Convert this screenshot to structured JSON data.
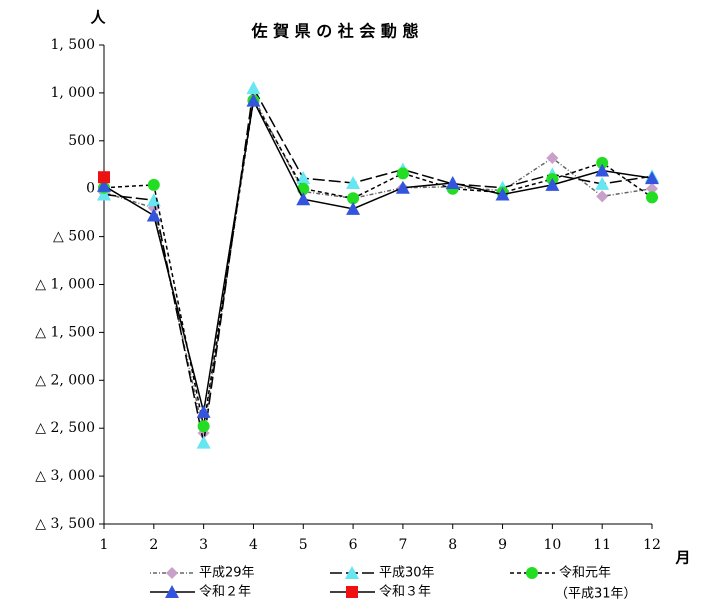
{
  "chart_data": {
    "type": "line",
    "title": "佐 賀 県 の 社 会 動 態",
    "y_label": "人",
    "x_label": "月",
    "x": [
      1,
      2,
      3,
      4,
      5,
      6,
      7,
      8,
      9,
      10,
      11,
      12
    ],
    "xlim": [
      1,
      12
    ],
    "xticks": [
      1,
      2,
      3,
      4,
      5,
      6,
      7,
      8,
      9,
      10,
      11,
      12
    ],
    "ylim": [
      -3500,
      1500
    ],
    "yticks": [
      {
        "value": 1500,
        "label": "1, 500"
      },
      {
        "value": 1000,
        "label": "1, 000"
      },
      500,
      0,
      {
        "value": -500,
        "label": "△ 500"
      },
      {
        "value": -1000,
        "label": "△ 1, 000"
      },
      {
        "value": -1500,
        "label": "△ 1, 500"
      },
      {
        "value": -2000,
        "label": "△ 2, 000"
      },
      {
        "value": -2500,
        "label": "△ 2, 500"
      },
      {
        "value": -3000,
        "label": "△ 3, 000"
      },
      {
        "value": -3500,
        "label": "△ 3, 500"
      }
    ],
    "grid": false,
    "series": [
      {
        "name": "平成29年",
        "color": "#c9a0c9",
        "line_color": "#666666",
        "dash": "1,2,4,2",
        "marker": "diamond",
        "values": [
          -40,
          -200,
          -2550,
          950,
          -30,
          -100,
          10,
          20,
          -20,
          320,
          -80,
          0
        ]
      },
      {
        "name": "平成30年",
        "color": "#66e6f0",
        "line_color": "#000000",
        "dash": "12,4",
        "marker": "triangle",
        "values": [
          -60,
          -120,
          -2650,
          1050,
          110,
          60,
          200,
          50,
          10,
          150,
          50,
          130
        ]
      },
      {
        "name": "令和元年",
        "color": "#22dd22",
        "line_color": "#000000",
        "dash": "4,3",
        "marker": "circle",
        "values": [
          10,
          40,
          -2480,
          920,
          0,
          -100,
          160,
          0,
          -40,
          100,
          270,
          -90
        ]
      },
      {
        "name": "令和２年",
        "color": "#3355dd",
        "line_color": "#000000",
        "dash": "none",
        "marker": "triangle",
        "values": [
          30,
          -280,
          -2330,
          920,
          -110,
          -210,
          10,
          60,
          -60,
          40,
          190,
          110
        ]
      },
      {
        "name": "令和３年",
        "color": "#ee1111",
        "line_color": "#000000",
        "dash": "none",
        "marker": "square",
        "values": [
          120,
          null,
          null,
          null,
          null,
          null,
          null,
          null,
          null,
          null,
          null,
          null
        ]
      }
    ],
    "legend_note": "（平成31年）"
  }
}
